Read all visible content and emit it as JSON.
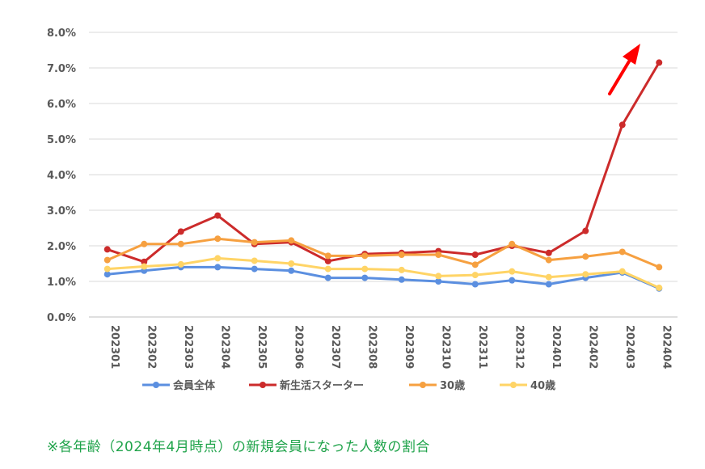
{
  "chart_data": {
    "type": "line",
    "categories": [
      "202301",
      "202302",
      "202303",
      "202304",
      "202305",
      "202306",
      "202307",
      "202308",
      "202309",
      "202310",
      "202311",
      "202312",
      "202401",
      "202402",
      "202403",
      "202404"
    ],
    "yticks": [
      "0.0%",
      "1.0%",
      "2.0%",
      "3.0%",
      "4.0%",
      "5.0%",
      "6.0%",
      "7.0%",
      "8.0%"
    ],
    "ylim": [
      0,
      8
    ],
    "grid": true,
    "legend_position": "bottom",
    "series": [
      {
        "name": "会員全体",
        "color": "#5b8fe0",
        "values": [
          1.2,
          1.3,
          1.4,
          1.4,
          1.35,
          1.3,
          1.1,
          1.1,
          1.05,
          1.0,
          0.92,
          1.03,
          0.92,
          1.1,
          1.25,
          0.8
        ]
      },
      {
        "name": "新生活スターター",
        "color": "#cc2b2b",
        "values": [
          1.9,
          1.55,
          2.4,
          2.85,
          2.05,
          2.1,
          1.57,
          1.77,
          1.8,
          1.85,
          1.75,
          2.0,
          1.8,
          2.42,
          5.4,
          7.15
        ]
      },
      {
        "name": "30歳",
        "color": "#f6a040",
        "values": [
          1.6,
          2.05,
          2.05,
          2.2,
          2.1,
          2.15,
          1.72,
          1.72,
          1.75,
          1.75,
          1.47,
          2.05,
          1.6,
          1.7,
          1.83,
          1.4
        ]
      },
      {
        "name": "40歳",
        "color": "#ffd466",
        "values": [
          1.35,
          1.42,
          1.48,
          1.65,
          1.58,
          1.5,
          1.35,
          1.35,
          1.32,
          1.15,
          1.18,
          1.28,
          1.12,
          1.2,
          1.28,
          0.82
        ]
      }
    ],
    "annotation_arrow_color": "#ff0000"
  },
  "note": "※各年齢（2024年4月時点）の新規会員になった人数の割合"
}
